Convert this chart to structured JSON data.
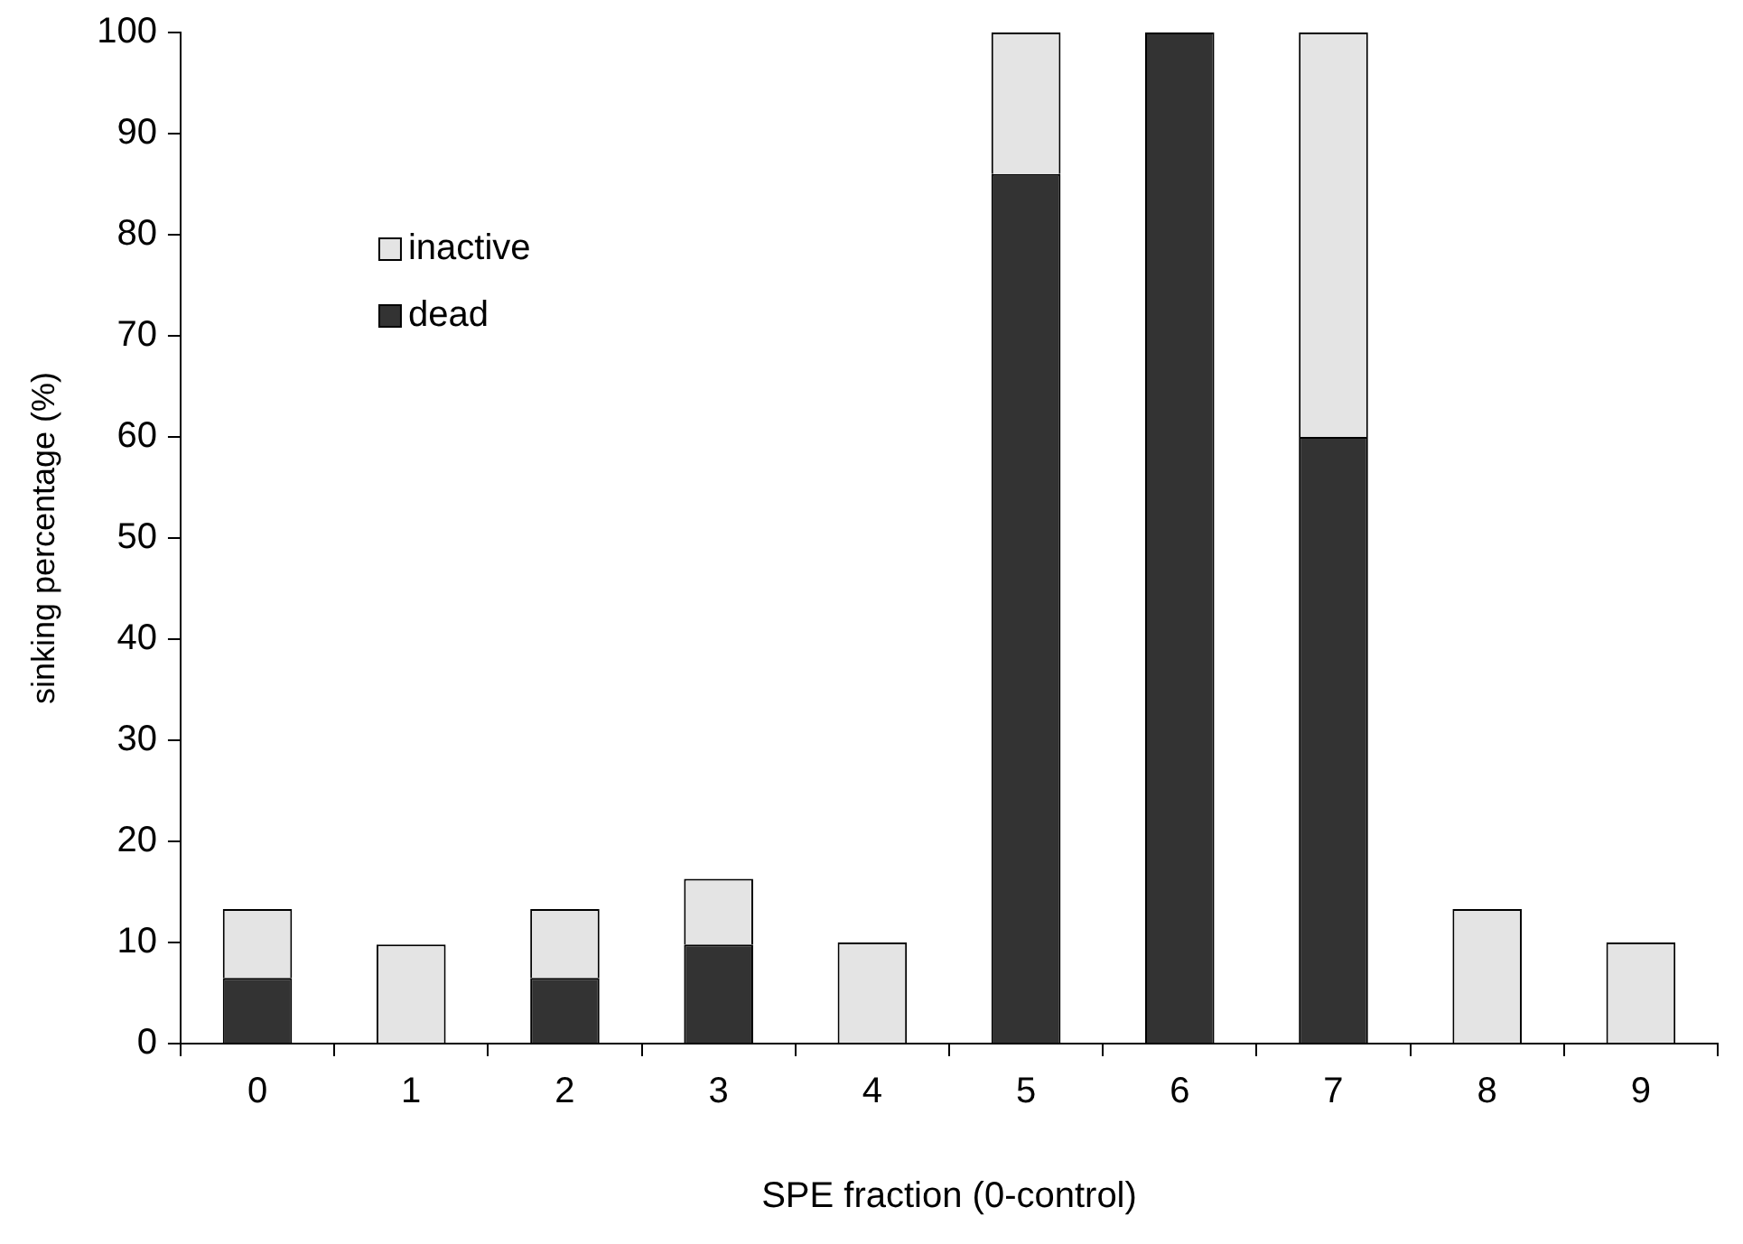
{
  "chart_data": {
    "type": "bar",
    "stacked": true,
    "xlabel": "SPE fraction (0-control)",
    "ylabel": "sinking percentage (%)",
    "categories": [
      "0",
      "1",
      "2",
      "3",
      "4",
      "5",
      "6",
      "7",
      "8",
      "9"
    ],
    "series": [
      {
        "name": "dead",
        "color": "#333333",
        "values": [
          6.5,
          0,
          6.5,
          9.8,
          0,
          86,
          100,
          60,
          0,
          0
        ]
      },
      {
        "name": "inactive",
        "color": "#e4e4e4",
        "values": [
          6.8,
          9.8,
          6.8,
          6.5,
          10,
          14,
          0,
          40,
          13.3,
          10
        ]
      }
    ],
    "ylim": [
      0,
      100
    ],
    "yticks": [
      0,
      10,
      20,
      30,
      40,
      50,
      60,
      70,
      80,
      90,
      100
    ],
    "grid": false,
    "legend": "top left"
  }
}
